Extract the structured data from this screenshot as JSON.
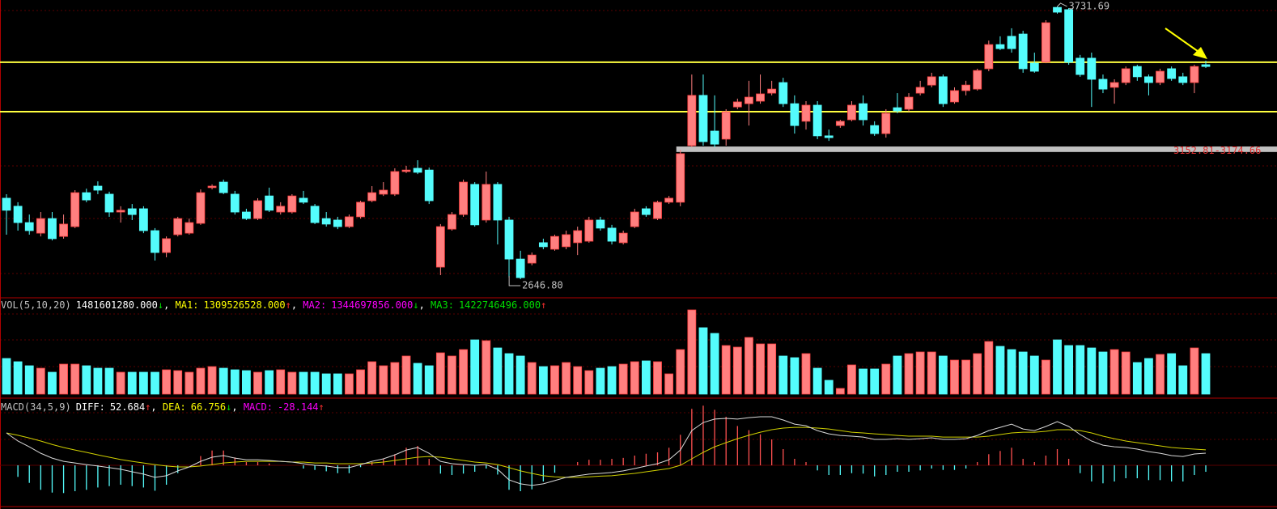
{
  "chart_data": [
    {
      "type": "candlestick",
      "open": [
        2969,
        2937,
        2872,
        2830,
        2888,
        2817,
        2856,
        2991,
        3017,
        2985,
        2914,
        2927,
        2927,
        2840,
        2753,
        2824,
        2830,
        2869,
        3011,
        3033,
        2985,
        2914,
        2888,
        2978,
        2914,
        2914,
        2969,
        2937,
        2888,
        2882,
        2856,
        2895,
        2959,
        2985,
        2985,
        3075,
        3088,
        3081,
        2695,
        2846,
        2904,
        3024,
        2882,
        3024,
        2882,
        2727,
        2711,
        2792,
        2766,
        2776,
        2792,
        2798,
        2882,
        2850,
        2792,
        2856,
        2927,
        2888,
        2953,
        2953,
        3178,
        3378,
        3236,
        3204,
        3332,
        3345,
        3355,
        3387,
        3429,
        3345,
        3275,
        3339,
        3217,
        3258,
        3281,
        3345,
        3258,
        3226,
        3329,
        3323,
        3387,
        3419,
        3452,
        3352,
        3397,
        3403,
        3484,
        3580,
        3613,
        3622,
        3506,
        3510,
        3728,
        3719,
        3526,
        3526,
        3442,
        3410,
        3429,
        3493,
        3452,
        3429,
        3484,
        3452,
        3429,
        3500
      ],
      "high": [
        2985,
        2953,
        2904,
        2914,
        2914,
        2904,
        3001,
        3007,
        3036,
        2995,
        2937,
        2946,
        2937,
        2850,
        2817,
        2895,
        2888,
        3004,
        3024,
        3043,
        2998,
        2927,
        2969,
        3011,
        2953,
        2985,
        2998,
        2946,
        2914,
        2895,
        2904,
        2959,
        3017,
        3033,
        3088,
        3098,
        3120,
        3091,
        2866,
        2914,
        3043,
        3033,
        3075,
        3033,
        2895,
        2760,
        2753,
        2808,
        2824,
        2840,
        2856,
        2895,
        2895,
        2863,
        2840,
        2927,
        2937,
        2959,
        2978,
        3162,
        3461,
        3461,
        3378,
        3323,
        3365,
        3436,
        3461,
        3436,
        3448,
        3378,
        3355,
        3355,
        3242,
        3281,
        3355,
        3378,
        3275,
        3323,
        3387,
        3387,
        3436,
        3468,
        3461,
        3410,
        3436,
        3484,
        3596,
        3613,
        3645,
        3635,
        3548,
        3677,
        3731.69,
        3725,
        3539,
        3548,
        3461,
        3442,
        3493,
        3500,
        3461,
        3484,
        3493,
        3468,
        3500,
        3516
      ],
      "low": [
        2824,
        2840,
        2824,
        2817,
        2801,
        2808,
        2850,
        2953,
        2985,
        2895,
        2872,
        2882,
        2830,
        2721,
        2734,
        2817,
        2824,
        2863,
        3004,
        2985,
        2904,
        2882,
        2882,
        2914,
        2904,
        2908,
        2946,
        2866,
        2856,
        2846,
        2850,
        2888,
        2953,
        2978,
        2978,
        3069,
        3065,
        2946,
        2663,
        2840,
        2895,
        2856,
        2872,
        2785,
        2653,
        2646.8,
        2702,
        2766,
        2760,
        2766,
        2743,
        2792,
        2840,
        2785,
        2785,
        2850,
        2895,
        2882,
        2946,
        2937,
        3172,
        3178,
        3172,
        3178,
        3323,
        3258,
        3345,
        3378,
        3332,
        3226,
        3242,
        3204,
        3197,
        3249,
        3275,
        3258,
        3217,
        3210,
        3307,
        3313,
        3378,
        3410,
        3332,
        3345,
        3378,
        3397,
        3474,
        3558,
        3548,
        3468,
        3468,
        3506,
        3703,
        3500,
        3452,
        3332,
        3387,
        3345,
        3419,
        3436,
        3378,
        3419,
        3436,
        3419,
        3387,
        3487
      ],
      "close": [
        2921,
        2872,
        2840,
        2888,
        2808,
        2866,
        2991,
        2962,
        3001,
        2914,
        2921,
        2904,
        2840,
        2753,
        2808,
        2888,
        2872,
        2991,
        3017,
        2991,
        2914,
        2888,
        2959,
        2921,
        2937,
        2978,
        2953,
        2872,
        2866,
        2856,
        2895,
        2953,
        2991,
        3001,
        3075,
        3081,
        3072,
        2959,
        2856,
        2904,
        3033,
        2863,
        3024,
        2882,
        2727,
        2653,
        2743,
        2776,
        2817,
        2824,
        2840,
        2882,
        2850,
        2798,
        2830,
        2914,
        2904,
        2953,
        2969,
        3146,
        3378,
        3194,
        3184,
        3313,
        3352,
        3371,
        3384,
        3403,
        3345,
        3258,
        3339,
        3217,
        3210,
        3275,
        3339,
        3281,
        3226,
        3307,
        3316,
        3371,
        3410,
        3452,
        3345,
        3397,
        3419,
        3477,
        3580,
        3564,
        3564,
        3484,
        3474,
        3667,
        3709,
        3510,
        3461,
        3442,
        3403,
        3429,
        3484,
        3452,
        3429,
        3474,
        3445,
        3429,
        3493,
        3493
      ],
      "ylim": [
        2582.5,
        3757.4
      ],
      "up_color": "#ff7f7f",
      "down_color": "#54fcfc",
      "levels": [
        3510,
        3313
      ],
      "level_color": "#ffff40",
      "zone": {
        "from": 3152.81,
        "to": 3174.66,
        "label": "3152.81-3174.66"
      },
      "zone_color": "#c0c0c0",
      "max_label": {
        "value": 3731.69,
        "label": "3731.69"
      },
      "min_label": {
        "value": 2646.8,
        "label": "2646.80"
      }
    },
    {
      "type": "bar",
      "title": "VOL(5,10,20)",
      "values": [
        1304000000.0,
        1185000000.0,
        1037000000.0,
        948000000.0,
        800000000.0,
        1096000000.0,
        1096000000.0,
        1037000000.0,
        948000000.0,
        948000000.0,
        800000000.0,
        800000000.0,
        800000000.0,
        800000000.0,
        889000000.0,
        859000000.0,
        800000000.0,
        948000000.0,
        1007000000.0,
        948000000.0,
        889000000.0,
        859000000.0,
        800000000.0,
        859000000.0,
        889000000.0,
        800000000.0,
        800000000.0,
        800000000.0,
        741000000.0,
        741000000.0,
        741000000.0,
        889000000.0,
        1185000000.0,
        1037000000.0,
        1156000000.0,
        1393000000.0,
        1126000000.0,
        1037000000.0,
        1511000000.0,
        1393000000.0,
        1630000000.0,
        1985000000.0,
        1956000000.0,
        1689000000.0,
        1482000000.0,
        1393000000.0,
        1156000000.0,
        1007000000.0,
        1037000000.0,
        1156000000.0,
        1007000000.0,
        859000000.0,
        948000000.0,
        1007000000.0,
        1096000000.0,
        1185000000.0,
        1215000000.0,
        1185000000.0,
        741000000.0,
        1630000000.0,
        3082000000.0,
        2430000000.0,
        2222000000.0,
        1778000000.0,
        1719000000.0,
        2074000000.0,
        1837000000.0,
        1837000000.0,
        1393000000.0,
        1333000000.0,
        1482000000.0,
        948000000.0,
        504000000.0,
        207000000.0,
        1067000000.0,
        919000000.0,
        919000000.0,
        1096000000.0,
        1393000000.0,
        1482000000.0,
        1541000000.0,
        1541000000.0,
        1393000000.0,
        1244000000.0,
        1244000000.0,
        1482000000.0,
        1926000000.0,
        1748000000.0,
        1630000000.0,
        1541000000.0,
        1393000000.0,
        1244000000.0,
        1985000000.0,
        1778000000.0,
        1778000000.0,
        1689000000.0,
        1541000000.0,
        1630000000.0,
        1541000000.0,
        1156000000.0,
        1304000000.0,
        1452000000.0,
        1482000000.0,
        1037000000.0,
        1689000000.0,
        1481601280
      ],
      "ylim": [
        0,
        3467000000.0
      ],
      "separator": ", ",
      "readouts": [
        {
          "value": {
            "value": 1481601280,
            "label": "1481601280.000"
          },
          "trend": "↓",
          "color": "#ffffff"
        },
        {
          "name": "MA1:",
          "value": {
            "value": 1309526528,
            "label": "1309526528.000"
          },
          "trend": "↑",
          "color": "#ffff00"
        },
        {
          "name": "MA2:",
          "value": {
            "value": 1344697856,
            "label": "1344697856.000"
          },
          "trend": "↓",
          "color": "#ff00ff"
        },
        {
          "name": "MA3:",
          "value": {
            "value": 1422746496,
            "label": "1422746496.000"
          },
          "trend": "↑",
          "color": "#00e000"
        }
      ]
    },
    {
      "type": "macd",
      "title": "MACD(34,5,9)",
      "diff": [
        140,
        105,
        80,
        52,
        31,
        17,
        10,
        3,
        -3,
        -10,
        -17,
        -28,
        -38,
        -52,
        -45,
        -24,
        -7,
        17,
        35,
        42,
        31,
        24,
        24,
        21,
        17,
        14,
        7,
        0,
        -3,
        -10,
        -10,
        3,
        17,
        28,
        45,
        66,
        77,
        52,
        17,
        7,
        3,
        0,
        3,
        -17,
        -63,
        -80,
        -87,
        -80,
        -66,
        -52,
        -45,
        -38,
        -35,
        -31,
        -24,
        -14,
        -3,
        7,
        24,
        66,
        150,
        185,
        200,
        203,
        200,
        206,
        210,
        210,
        196,
        178,
        171,
        150,
        136,
        129,
        126,
        122,
        112,
        112,
        115,
        112,
        115,
        119,
        112,
        112,
        115,
        129,
        150,
        164,
        178,
        157,
        150,
        168,
        189,
        168,
        133,
        105,
        87,
        80,
        77,
        70,
        59,
        52,
        42,
        38,
        49,
        52.684
      ],
      "dea": [
        140,
        130,
        118,
        105,
        90,
        77,
        66,
        56,
        45,
        35,
        25,
        17,
        10,
        3,
        -3,
        -7,
        -7,
        -3,
        3,
        10,
        14,
        17,
        17,
        17,
        17,
        14,
        14,
        10,
        10,
        7,
        7,
        7,
        10,
        14,
        21,
        28,
        35,
        38,
        35,
        28,
        21,
        14,
        10,
        3,
        -10,
        -24,
        -35,
        -45,
        -50,
        -52,
        -52,
        -50,
        -47,
        -45,
        -40,
        -35,
        -28,
        -21,
        -14,
        0,
        28,
        56,
        80,
        98,
        115,
        130,
        143,
        154,
        161,
        164,
        164,
        161,
        157,
        150,
        143,
        140,
        136,
        133,
        129,
        126,
        126,
        126,
        122,
        122,
        122,
        122,
        126,
        133,
        140,
        143,
        143,
        147,
        154,
        154,
        150,
        140,
        126,
        115,
        105,
        98,
        91,
        84,
        77,
        73,
        70,
        66.756
      ],
      "macd": [
        0,
        -50,
        -76,
        -106,
        -118,
        -120,
        -112,
        -106,
        -96,
        -90,
        -84,
        -90,
        -96,
        -110,
        -84,
        -34,
        0,
        40,
        64,
        64,
        34,
        14,
        14,
        8,
        0,
        0,
        -14,
        -20,
        -26,
        -34,
        -34,
        -8,
        14,
        28,
        48,
        76,
        84,
        28,
        -36,
        -42,
        -36,
        -28,
        -14,
        -40,
        -106,
        -112,
        -104,
        -70,
        -32,
        0,
        14,
        24,
        24,
        28,
        32,
        42,
        50,
        56,
        76,
        132,
        244,
        258,
        240,
        210,
        170,
        152,
        134,
        112,
        70,
        28,
        14,
        -22,
        -42,
        -42,
        -34,
        -36,
        -48,
        -42,
        -28,
        -28,
        -22,
        -14,
        -20,
        -20,
        -14,
        14,
        48,
        62,
        76,
        28,
        14,
        42,
        70,
        28,
        -34,
        -70,
        -78,
        -70,
        -56,
        -56,
        -64,
        -64,
        -70,
        -70,
        -42,
        -28.144
      ],
      "ylim": [
        -164.5,
        280
      ],
      "diff_color": "#d8d8d8",
      "dea_color": "#d0d000",
      "separator": ", ",
      "readouts": [
        {
          "name": "DIFF:",
          "value": 52.684,
          "trend": "↑",
          "color": "#ffffff"
        },
        {
          "name": "DEA:",
          "value": 66.756,
          "trend": "↓",
          "color": "#ffff00"
        },
        {
          "name": "MACD:",
          "value": -28.144,
          "trend": "↑",
          "color": "#ff00ff"
        }
      ]
    }
  ]
}
